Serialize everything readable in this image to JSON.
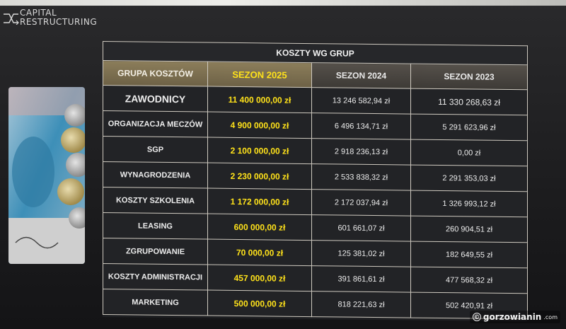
{
  "logo": {
    "line1": "CAPITAL",
    "line2": "RESTRUCTURING"
  },
  "table": {
    "title": "KOSZTY WG GRUP",
    "headers": {
      "group": "GRUPA KOSZTÓW",
      "s2025": "SEZON 2025",
      "s2024": "SEZON 2024",
      "s2023": "SEZON 2023"
    },
    "rows": [
      {
        "group": "ZAWODNICY",
        "s2025": "11 400 000,00 zł",
        "s2024": "13 246 582,94 zł",
        "s2023": "11 330 268,63 zł"
      },
      {
        "group": "ORGANIZACJA MECZÓW",
        "s2025": "4 900 000,00 zł",
        "s2024": "6 496 134,71 zł",
        "s2023": "5 291 623,96 zł"
      },
      {
        "group": "SGP",
        "s2025": "2 100 000,00 zł",
        "s2024": "2 918 236,13 zł",
        "s2023": "0,00 zł"
      },
      {
        "group": "WYNAGRODZENIA",
        "s2025": "2 230 000,00 zł",
        "s2024": "2 533 838,32 zł",
        "s2023": "2 291 353,03 zł"
      },
      {
        "group": "KOSZTY SZKOLENIA",
        "s2025": "1 172 000,00 zł",
        "s2024": "2 172 037,94 zł",
        "s2023": "1 326 993,12 zł"
      },
      {
        "group": "LEASING",
        "s2025": "600 000,00 zł",
        "s2024": "601 661,07 zł",
        "s2023": "260 904,51 zł"
      },
      {
        "group": "ZGRUPOWANIE",
        "s2025": "70 000,00 zł",
        "s2024": "125 381,02 zł",
        "s2023": "182 649,55 zł"
      },
      {
        "group": "KOSZTY ADMINISTRACJI",
        "s2025": "457 000,00 zł",
        "s2024": "391 861,61 zł",
        "s2023": "477 568,32 zł"
      },
      {
        "group": "MARKETING",
        "s2025": "500 000,00 zł",
        "s2024": "818 221,63 zł",
        "s2023": "502 420,91 zł"
      }
    ]
  },
  "watermark": {
    "symbol": "©",
    "name": "gorzowianin",
    "domain": ".com"
  },
  "colors": {
    "highlight": "#ffe21a",
    "header_gold": "#8b7d5a",
    "background": "#1f2023"
  }
}
